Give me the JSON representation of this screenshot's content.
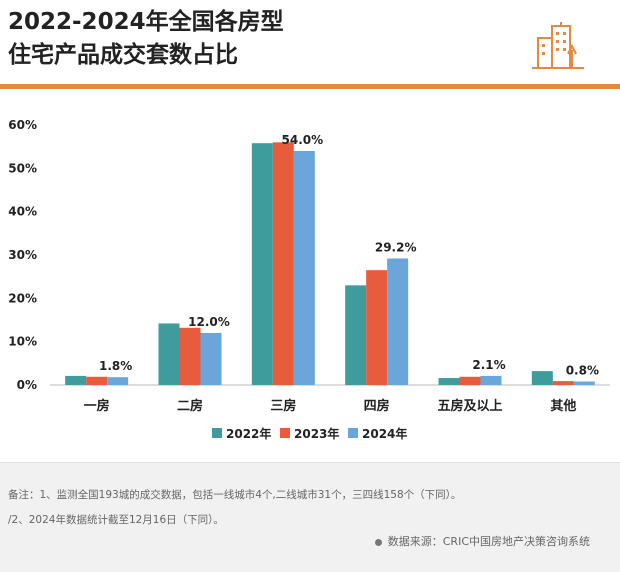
{
  "title_lines": [
    "2022-2024年全国各房型",
    "住宅产品成交套数占比"
  ],
  "colors": {
    "accent": "#e48a3e",
    "series": [
      "#3e9c9c",
      "#e65c3d",
      "#6aa6d9"
    ]
  },
  "chart_data": {
    "type": "bar",
    "categories": [
      "一房",
      "二房",
      "三房",
      "四房",
      "五房及以上",
      "其他"
    ],
    "series": [
      {
        "name": "2022年",
        "values": [
          2.1,
          14.2,
          55.8,
          23.0,
          1.6,
          3.2
        ]
      },
      {
        "name": "2023年",
        "values": [
          1.9,
          13.2,
          56.0,
          26.5,
          1.9,
          0.9
        ]
      },
      {
        "name": "2024年",
        "values": [
          1.8,
          12.0,
          54.0,
          29.2,
          2.1,
          0.8
        ]
      }
    ],
    "data_labels": [
      "1.8%",
      "12.0%",
      "54.0%",
      "29.2%",
      "2.1%",
      "0.8%"
    ],
    "y_ticks": [
      "0%",
      "10%",
      "20%",
      "30%",
      "40%",
      "50%",
      "60%"
    ],
    "ylim": [
      0,
      60
    ],
    "grid": false,
    "legend_position": "bottom"
  },
  "footer": {
    "note1": "备注：1、监测全国193城的成交数据，包括一线城市4个,二线城市31个，三四线158个（下同）。",
    "note2": "/2、2024年数据统计截至12月16日（下同）。",
    "source": "数据来源：CRIC中国房地产决策咨询系统"
  },
  "icons": {
    "logo": "building-icon",
    "source_bullet": "dot-icon"
  }
}
